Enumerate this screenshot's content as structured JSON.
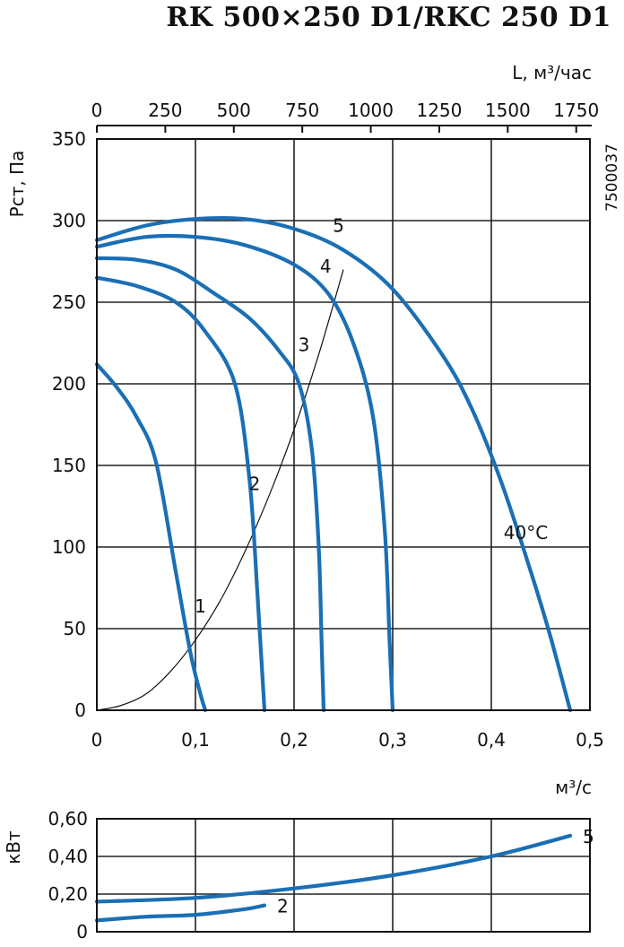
{
  "chart_data": [
    {
      "type": "line",
      "title": "RK 500×250 D1/RKC 250 D1",
      "code": "7500037",
      "ylabel": "Рст, Па",
      "xlabel": "м³/с",
      "x2label": "L, м³/час",
      "xlim": [
        0,
        0.5
      ],
      "ylim": [
        0,
        350
      ],
      "x2lim": [
        0,
        1800
      ],
      "xticks": [
        "0",
        "0,1",
        "0,2",
        "0,3",
        "0,4",
        "0,5"
      ],
      "xtick_values": [
        0,
        0.1,
        0.2,
        0.3,
        0.4,
        0.5
      ],
      "yticks": [
        "0",
        "50",
        "100",
        "150",
        "200",
        "250",
        "300",
        "350"
      ],
      "ytick_values": [
        0,
        50,
        100,
        150,
        200,
        250,
        300,
        350
      ],
      "x2ticks": [
        "0",
        "250",
        "500",
        "750",
        "1000",
        "1250",
        "1500",
        "1750"
      ],
      "x2tick_values": [
        0,
        250,
        500,
        750,
        1000,
        1250,
        1500,
        1750
      ],
      "grid": true,
      "series": [
        {
          "name": "1",
          "x": [
            0,
            0.02,
            0.04,
            0.06,
            0.08,
            0.095,
            0.105,
            0.11
          ],
          "y": [
            212,
            198,
            180,
            152,
            85,
            35,
            10,
            0
          ]
        },
        {
          "name": "2",
          "x": [
            0,
            0.04,
            0.08,
            0.11,
            0.14,
            0.155,
            0.163,
            0.168,
            0.17
          ],
          "y": [
            265,
            260,
            250,
            232,
            200,
            140,
            70,
            20,
            0
          ]
        },
        {
          "name": "3",
          "x": [
            0,
            0.04,
            0.08,
            0.12,
            0.155,
            0.185,
            0.205,
            0.218,
            0.225,
            0.228,
            0.23
          ],
          "y": [
            277,
            276,
            270,
            255,
            240,
            220,
            200,
            160,
            100,
            40,
            0
          ]
        },
        {
          "name": "4",
          "x": [
            0,
            0.05,
            0.1,
            0.15,
            0.2,
            0.235,
            0.26,
            0.28,
            0.292,
            0.297,
            0.3
          ],
          "y": [
            284,
            290,
            290,
            285,
            273,
            255,
            225,
            180,
            110,
            40,
            0
          ]
        },
        {
          "name": "5",
          "x": [
            0,
            0.05,
            0.1,
            0.15,
            0.2,
            0.25,
            0.3,
            0.35,
            0.38,
            0.41,
            0.44,
            0.46,
            0.48
          ],
          "y": [
            288,
            297,
            301,
            301,
            295,
            282,
            258,
            218,
            185,
            140,
            85,
            45,
            0
          ]
        }
      ],
      "system_curve": {
        "x": [
          0,
          0.025,
          0.05,
          0.075,
          0.1,
          0.125,
          0.15,
          0.175,
          0.2,
          0.225,
          0.25
        ],
        "y": [
          0,
          3,
          10,
          24,
          43,
          67,
          97,
          132,
          172,
          218,
          270
        ]
      },
      "curve_labels": [
        {
          "text": "1",
          "x": 0.105,
          "y": 60
        },
        {
          "text": "2",
          "x": 0.16,
          "y": 135
        },
        {
          "text": "3",
          "x": 0.21,
          "y": 220
        },
        {
          "text": "4",
          "x": 0.232,
          "y": 268
        },
        {
          "text": "5",
          "x": 0.245,
          "y": 293
        },
        {
          "text": "40°C",
          "x": 0.435,
          "y": 105
        }
      ]
    },
    {
      "type": "line",
      "ylabel": "кВт",
      "ylim": [
        0,
        0.6
      ],
      "xlim": [
        0,
        0.5
      ],
      "yticks": [
        "0",
        "0,20",
        "0,40",
        "0,60"
      ],
      "ytick_values": [
        0,
        0.2,
        0.4,
        0.6
      ],
      "grid": true,
      "series": [
        {
          "name": "5",
          "x": [
            0,
            0.1,
            0.2,
            0.3,
            0.4,
            0.48
          ],
          "y": [
            0.16,
            0.18,
            0.23,
            0.3,
            0.4,
            0.51
          ]
        },
        {
          "name": "2",
          "x": [
            0,
            0.05,
            0.1,
            0.15,
            0.17
          ],
          "y": [
            0.06,
            0.08,
            0.09,
            0.12,
            0.14
          ]
        }
      ]
    }
  ]
}
